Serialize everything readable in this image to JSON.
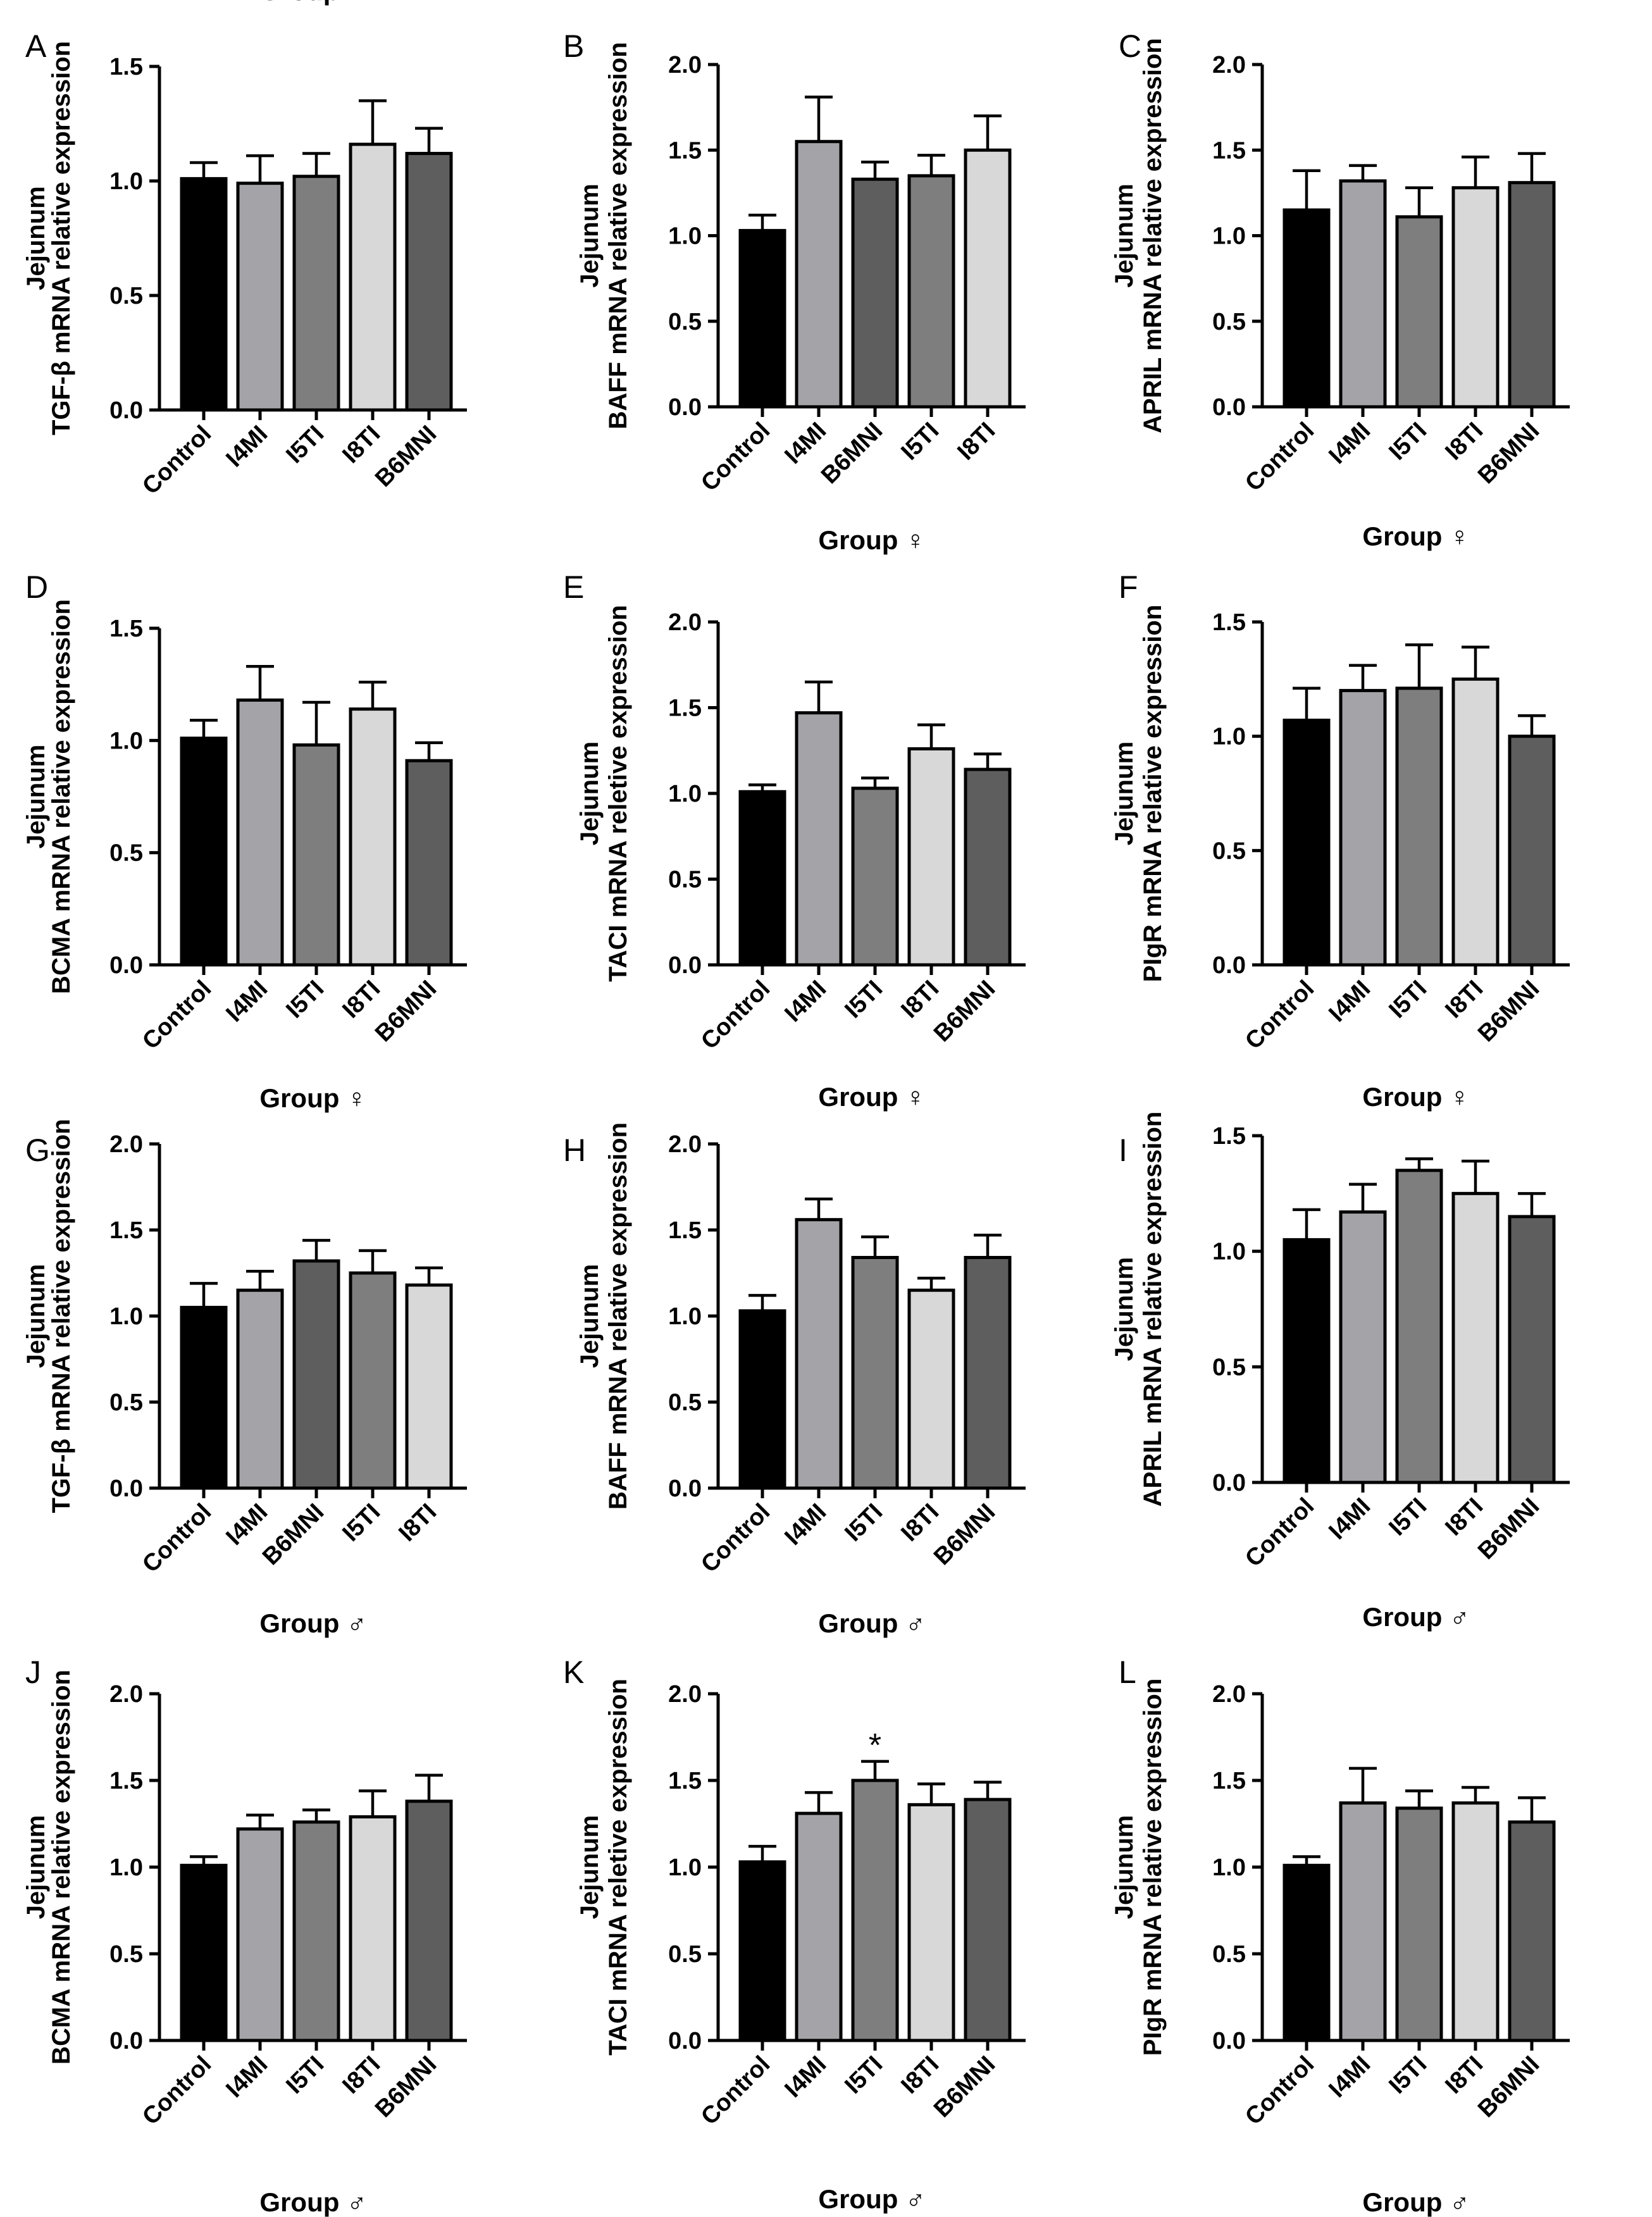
{
  "fill_colors": {
    "Control": "#000000",
    "I4MI": "#a3a3a8",
    "I5TI": "#7e7e7e",
    "I8TI": "#d8d8d8",
    "B6MNI": "#5e5e5e"
  },
  "chart_data": [
    {
      "panel": "A",
      "type": "bar",
      "ylabel_line1": "Jejunum",
      "ylabel_line2": "TGF-β mRNA relative expression",
      "xlabel": "Group ♀",
      "categories": [
        "Control",
        "I4MI",
        "I5TI",
        "I8TI",
        "B6MNI"
      ],
      "values": [
        1.01,
        0.99,
        1.02,
        1.16,
        1.12
      ],
      "errors": [
        0.07,
        0.12,
        0.1,
        0.19,
        0.11
      ],
      "ylim": [
        0,
        1.5
      ],
      "yticks": [
        "0.0",
        "0.5",
        "1.0",
        "1.5"
      ],
      "significance": [
        null,
        null,
        null,
        null,
        null
      ]
    },
    {
      "panel": "B",
      "type": "bar",
      "ylabel_line1": "Jejunum",
      "ylabel_line2": "BAFF mRNA relative expression",
      "xlabel": "Group ♀",
      "categories": [
        "Control",
        "I4MI",
        "B6MNI",
        "I5TI",
        "I8TI"
      ],
      "values": [
        1.03,
        1.55,
        1.33,
        1.35,
        1.5
      ],
      "errors": [
        0.09,
        0.26,
        0.1,
        0.12,
        0.2
      ],
      "ylim": [
        0,
        2.0
      ],
      "yticks": [
        "0.0",
        "0.5",
        "1.0",
        "1.5",
        "2.0"
      ],
      "significance": [
        null,
        null,
        null,
        null,
        null
      ]
    },
    {
      "panel": "C",
      "type": "bar",
      "ylabel_line1": "Jejunum",
      "ylabel_line2": "APRIL mRNA relative expression",
      "xlabel": "Group ♀",
      "categories": [
        "Control",
        "I4MI",
        "I5TI",
        "I8TI",
        "B6MNI"
      ],
      "values": [
        1.15,
        1.32,
        1.11,
        1.28,
        1.31
      ],
      "errors": [
        0.23,
        0.09,
        0.17,
        0.18,
        0.17
      ],
      "ylim": [
        0,
        2.0
      ],
      "yticks": [
        "0.0",
        "0.5",
        "1.0",
        "1.5",
        "2.0"
      ],
      "significance": [
        null,
        null,
        null,
        null,
        null
      ]
    },
    {
      "panel": "D",
      "type": "bar",
      "ylabel_line1": "Jejunum",
      "ylabel_line2": "BCMA mRNA relative expression",
      "xlabel": "Group ♀",
      "categories": [
        "Control",
        "I4MI",
        "I5TI",
        "I8TI",
        "B6MNI"
      ],
      "values": [
        1.01,
        1.18,
        0.98,
        1.14,
        0.91
      ],
      "errors": [
        0.08,
        0.15,
        0.19,
        0.12,
        0.08
      ],
      "ylim": [
        0,
        1.5
      ],
      "yticks": [
        "0.0",
        "0.5",
        "1.0",
        "1.5"
      ],
      "significance": [
        null,
        null,
        null,
        null,
        null
      ]
    },
    {
      "panel": "E",
      "type": "bar",
      "ylabel_line1": "Jejunum",
      "ylabel_line2": "TACI mRNA reletive expression",
      "xlabel": "Group ♀",
      "categories": [
        "Control",
        "I4MI",
        "I5TI",
        "I8TI",
        "B6MNI"
      ],
      "values": [
        1.01,
        1.47,
        1.03,
        1.26,
        1.14
      ],
      "errors": [
        0.04,
        0.18,
        0.06,
        0.14,
        0.09
      ],
      "ylim": [
        0,
        2.0
      ],
      "yticks": [
        "0.0",
        "0.5",
        "1.0",
        "1.5",
        "2.0"
      ],
      "significance": [
        null,
        null,
        null,
        null,
        null
      ]
    },
    {
      "panel": "F",
      "type": "bar",
      "ylabel_line1": "Jejunum",
      "ylabel_line2": "PIgR mRNA relative expression",
      "xlabel": "Group ♀",
      "categories": [
        "Control",
        "I4MI",
        "I5TI",
        "I8TI",
        "B6MNI"
      ],
      "values": [
        1.07,
        1.2,
        1.21,
        1.25,
        1.0
      ],
      "errors": [
        0.14,
        0.11,
        0.19,
        0.14,
        0.09
      ],
      "ylim": [
        0,
        1.5
      ],
      "yticks": [
        "0.0",
        "0.5",
        "1.0",
        "1.5"
      ],
      "significance": [
        null,
        null,
        null,
        null,
        null
      ]
    },
    {
      "panel": "G",
      "type": "bar",
      "ylabel_line1": "Jejunum",
      "ylabel_line2": "TGF-β mRNA relative expression",
      "xlabel": "Group ♂",
      "categories": [
        "Control",
        "I4MI",
        "B6MNI",
        "I5TI",
        "I8TI"
      ],
      "values": [
        1.05,
        1.15,
        1.32,
        1.25,
        1.18
      ],
      "errors": [
        0.14,
        0.11,
        0.12,
        0.13,
        0.1
      ],
      "ylim": [
        0,
        2.0
      ],
      "yticks": [
        "0.0",
        "0.5",
        "1.0",
        "1.5",
        "2.0"
      ],
      "significance": [
        null,
        null,
        null,
        null,
        null
      ]
    },
    {
      "panel": "H",
      "type": "bar",
      "ylabel_line1": "Jejunum",
      "ylabel_line2": "BAFF mRNA relative expression",
      "xlabel": "Group ♂",
      "categories": [
        "Control",
        "I4MI",
        "I5TI",
        "I8TI",
        "B6MNI"
      ],
      "values": [
        1.03,
        1.56,
        1.34,
        1.15,
        1.34
      ],
      "errors": [
        0.09,
        0.12,
        0.12,
        0.07,
        0.13
      ],
      "ylim": [
        0,
        2.0
      ],
      "yticks": [
        "0.0",
        "0.5",
        "1.0",
        "1.5",
        "2.0"
      ],
      "significance": [
        null,
        null,
        null,
        null,
        null
      ]
    },
    {
      "panel": "I",
      "type": "bar",
      "ylabel_line1": "Jejunum",
      "ylabel_line2": "APRIL mRNA relative expression",
      "xlabel": "Group ♂",
      "categories": [
        "Control",
        "I4MI",
        "I5TI",
        "I8TI",
        "B6MNI"
      ],
      "values": [
        1.05,
        1.17,
        1.35,
        1.25,
        1.15
      ],
      "errors": [
        0.13,
        0.12,
        0.05,
        0.14,
        0.1
      ],
      "ylim": [
        0,
        1.5
      ],
      "yticks": [
        "0.0",
        "0.5",
        "1.0",
        "1.5"
      ],
      "significance": [
        null,
        null,
        null,
        null,
        null
      ]
    },
    {
      "panel": "J",
      "type": "bar",
      "ylabel_line1": "Jejunum",
      "ylabel_line2": "BCMA mRNA relative expression",
      "xlabel": "Group ♂",
      "categories": [
        "Control",
        "I4MI",
        "I5TI",
        "I8TI",
        "B6MNI"
      ],
      "values": [
        1.01,
        1.22,
        1.26,
        1.29,
        1.38
      ],
      "errors": [
        0.05,
        0.08,
        0.07,
        0.15,
        0.15
      ],
      "ylim": [
        0,
        2.0
      ],
      "yticks": [
        "0.0",
        "0.5",
        "1.0",
        "1.5",
        "2.0"
      ],
      "significance": [
        null,
        null,
        null,
        null,
        null
      ]
    },
    {
      "panel": "K",
      "type": "bar",
      "ylabel_line1": "Jejunum",
      "ylabel_line2": "TACI mRNA reletive expression",
      "xlabel": "Group ♂",
      "categories": [
        "Control",
        "I4MI",
        "I5TI",
        "I8TI",
        "B6MNI"
      ],
      "values": [
        1.03,
        1.31,
        1.5,
        1.36,
        1.39
      ],
      "errors": [
        0.09,
        0.12,
        0.11,
        0.12,
        0.1
      ],
      "ylim": [
        0,
        2.0
      ],
      "yticks": [
        "0.0",
        "0.5",
        "1.0",
        "1.5",
        "2.0"
      ],
      "significance": [
        null,
        null,
        "*",
        null,
        null
      ]
    },
    {
      "panel": "L",
      "type": "bar",
      "ylabel_line1": "Jejunum",
      "ylabel_line2": "PIgR mRNA relative expression",
      "xlabel": "Group ♂",
      "categories": [
        "Control",
        "I4MI",
        "I5TI",
        "I8TI",
        "B6MNI"
      ],
      "values": [
        1.01,
        1.37,
        1.34,
        1.37,
        1.26
      ],
      "errors": [
        0.05,
        0.2,
        0.1,
        0.09,
        0.14
      ],
      "ylim": [
        0,
        2.0
      ],
      "yticks": [
        "0.0",
        "0.5",
        "1.0",
        "1.5",
        "2.0"
      ],
      "significance": [
        null,
        null,
        null,
        null,
        null
      ]
    }
  ]
}
